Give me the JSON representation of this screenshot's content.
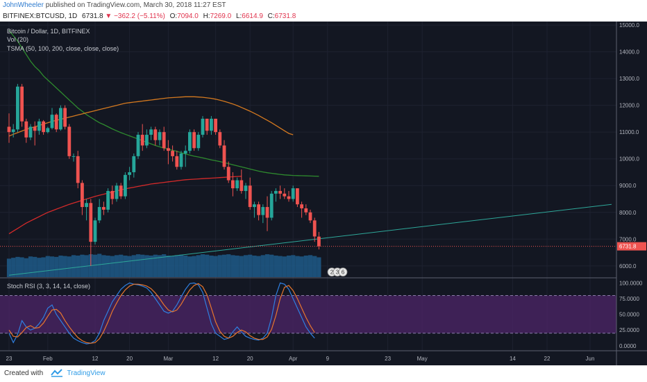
{
  "publish": {
    "author": "JohnWheeler",
    "text": " published on TradingView.com, March 30, 2018 11:27 EST"
  },
  "symbol": {
    "ticker": "BITFINEX:BTCUSD, 1D",
    "last": "6731.8",
    "change_arrow": "▼",
    "change": "−362.2 (−5.11%)",
    "o_label": "O:",
    "o_value": "7094.0",
    "h_label": "H:",
    "h_value": "7269.0",
    "l_label": "L:",
    "l_value": "6614.9",
    "c_label": "C:",
    "c_value": "6731.8"
  },
  "legend": {
    "main": "Bitcoin / Dollar, 1D, BITFINEX",
    "vol": "Vol (20)",
    "tsma": "TSMA (50, 100, 200, close, close, close)",
    "stoch": "Stoch RSI (3, 3, 14, 14, close)"
  },
  "colors": {
    "bg": "#131722",
    "up": "#26a69a",
    "down": "#ef5350",
    "ma50": "#2e8b2e",
    "ma100": "#d4791f",
    "ma200": "#d42a2a",
    "trend": "#2ea89a",
    "k": "#2f7fe0",
    "d": "#e8762d",
    "band": "#4a2464",
    "volume": "#1f5b88"
  },
  "price_axis": {
    "labels": [
      "15000.0",
      "14000.0",
      "13000.0",
      "12000.0",
      "11000.0",
      "10000.0",
      "9000.0",
      "8000.0",
      "7000.0",
      "6000.0"
    ],
    "values": [
      15000,
      14000,
      13000,
      12000,
      11000,
      10000,
      9000,
      8000,
      7000,
      6000
    ],
    "range": [
      5580,
      15080
    ],
    "last_price": 6731.8,
    "last_label": "6731.8"
  },
  "stoch_axis": {
    "labels": [
      "100.0000",
      "75.0000",
      "50.0000",
      "25.0000",
      "0.0000"
    ],
    "values": [
      100,
      75,
      50,
      25,
      0
    ],
    "band": [
      20,
      80
    ],
    "range": [
      -8,
      106
    ]
  },
  "time_axis": {
    "labels": [
      {
        "text": "23",
        "bar": 0
      },
      {
        "text": "Feb",
        "bar": 9
      },
      {
        "text": "12",
        "bar": 20
      },
      {
        "text": "20",
        "bar": 28
      },
      {
        "text": "Mar",
        "bar": 37
      },
      {
        "text": "12",
        "bar": 48
      },
      {
        "text": "20",
        "bar": 56
      },
      {
        "text": "Apr",
        "bar": 66
      },
      {
        "text": "9",
        "bar": 74
      },
      {
        "text": "23",
        "bar": 88
      },
      {
        "text": "May",
        "bar": 96
      },
      {
        "text": "14",
        "bar": 117
      },
      {
        "text": "22",
        "bar": 125
      },
      {
        "text": "Jun",
        "bar": 135
      }
    ]
  },
  "events": [
    "2",
    "3",
    "6"
  ],
  "chart_data": {
    "type": "candlestick",
    "title": "Bitcoin / Dollar, 1D, BITFINEX",
    "candles": [
      [
        11200,
        11700,
        10600,
        11000
      ],
      [
        11000,
        11300,
        10800,
        11100
      ],
      [
        11100,
        12800,
        11000,
        12700
      ],
      [
        12700,
        12800,
        11200,
        11400
      ],
      [
        11400,
        11500,
        10600,
        10800
      ],
      [
        10800,
        11300,
        10700,
        11200
      ],
      [
        11200,
        11400,
        10500,
        11050
      ],
      [
        11050,
        11500,
        10900,
        11400
      ],
      [
        11400,
        11450,
        10900,
        11000
      ],
      [
        11000,
        11200,
        10950,
        11150
      ],
      [
        11150,
        11900,
        11100,
        11650
      ],
      [
        11650,
        11700,
        11000,
        11100
      ],
      [
        11100,
        12000,
        11050,
        11900
      ],
      [
        11900,
        12000,
        11100,
        11200
      ],
      [
        11200,
        11300,
        10000,
        10100
      ],
      [
        10100,
        10200,
        9900,
        10100
      ],
      [
        10100,
        10300,
        8900,
        9100
      ],
      [
        9100,
        9200,
        7900,
        8200
      ],
      [
        8200,
        8500,
        7700,
        8350
      ],
      [
        8350,
        8500,
        6000,
        6900
      ],
      [
        6900,
        7800,
        6800,
        7700
      ],
      [
        7700,
        8500,
        7600,
        8200
      ],
      [
        8200,
        8400,
        7900,
        8100
      ],
      [
        8100,
        8900,
        8000,
        8800
      ],
      [
        8800,
        9000,
        8300,
        8500
      ],
      [
        8500,
        9100,
        8400,
        9000
      ],
      [
        9000,
        9100,
        8500,
        8600
      ],
      [
        8600,
        9500,
        8500,
        9400
      ],
      [
        9400,
        9700,
        9200,
        9500
      ],
      [
        9500,
        10200,
        9300,
        10100
      ],
      [
        10100,
        11000,
        10000,
        10900
      ],
      [
        10900,
        11300,
        10300,
        10500
      ],
      [
        10500,
        11100,
        10400,
        10900
      ],
      [
        10900,
        11200,
        10700,
        11100
      ],
      [
        11100,
        11200,
        10500,
        10700
      ],
      [
        10700,
        11100,
        10500,
        11000
      ],
      [
        11000,
        11200,
        10300,
        10400
      ],
      [
        10400,
        10700,
        9800,
        10300
      ],
      [
        10300,
        10500,
        9900,
        10100
      ],
      [
        10100,
        10300,
        9600,
        9700
      ],
      [
        9700,
        10300,
        9600,
        10200
      ],
      [
        10200,
        10500,
        9700,
        10300
      ],
      [
        10300,
        11100,
        10200,
        11000
      ],
      [
        11000,
        11100,
        10300,
        10400
      ],
      [
        10400,
        11000,
        10300,
        10900
      ],
      [
        10900,
        11600,
        10800,
        11500
      ],
      [
        11500,
        11500,
        10900,
        11050
      ],
      [
        11050,
        11600,
        10900,
        11500
      ],
      [
        11500,
        11500,
        10900,
        11000
      ],
      [
        11000,
        11100,
        10400,
        10500
      ],
      [
        10500,
        10700,
        9600,
        9700
      ],
      [
        9700,
        9900,
        9100,
        9200
      ],
      [
        9200,
        9500,
        8600,
        8900
      ],
      [
        8900,
        9300,
        8800,
        9200
      ],
      [
        9200,
        9600,
        8700,
        8800
      ],
      [
        8800,
        9100,
        8500,
        9000
      ],
      [
        9000,
        9300,
        8100,
        8200
      ],
      [
        8200,
        8400,
        7800,
        8300
      ],
      [
        8300,
        8400,
        7700,
        7900
      ],
      [
        7900,
        8300,
        7600,
        8200
      ],
      [
        8200,
        8600,
        7300,
        7800
      ],
      [
        7800,
        8800,
        7700,
        8700
      ],
      [
        8700,
        8900,
        8400,
        8800
      ],
      [
        8800,
        9000,
        8500,
        8700
      ],
      [
        8700,
        8900,
        8500,
        8600
      ],
      [
        8600,
        8800,
        8400,
        8500
      ],
      [
        8500,
        9000,
        8400,
        8900
      ],
      [
        8900,
        8900,
        8200,
        8300
      ],
      [
        8300,
        8400,
        7800,
        8150
      ],
      [
        8150,
        8300,
        7900,
        8000
      ],
      [
        8000,
        8100,
        7600,
        7700
      ],
      [
        7700,
        7800,
        6900,
        7100
      ],
      [
        7094,
        7269,
        6614.9,
        6731.8
      ]
    ],
    "volume": [
      42,
      44,
      46,
      45,
      43,
      47,
      46,
      44,
      45,
      48,
      47,
      46,
      49,
      48,
      47,
      50,
      49,
      51,
      50,
      52,
      51,
      53,
      50,
      49,
      48,
      50,
      51,
      49,
      48,
      50,
      52,
      51,
      50,
      49,
      51,
      50,
      52,
      49,
      48,
      50,
      51,
      49,
      47,
      48,
      50,
      52,
      51,
      49,
      48,
      50,
      51,
      52,
      50,
      49,
      48,
      50,
      51,
      49,
      48,
      50,
      52,
      51,
      49,
      48,
      47,
      49,
      50,
      48,
      47,
      49,
      50,
      48,
      45
    ],
    "ma50": [
      14800,
      14600,
      14400,
      14150,
      13900,
      13650,
      13450,
      13300,
      13100,
      12950,
      12800,
      12650,
      12500,
      12350,
      12200,
      12050,
      11900,
      11780,
      11650,
      11550,
      11450,
      11350,
      11280,
      11200,
      11120,
      11050,
      10980,
      10920,
      10860,
      10800,
      10740,
      10680,
      10620,
      10560,
      10500,
      10450,
      10400,
      10360,
      10320,
      10280,
      10230,
      10180,
      10140,
      10100,
      10070,
      10040,
      10000,
      9960,
      9930,
      9900,
      9860,
      9820,
      9780,
      9740,
      9700,
      9660,
      9620,
      9580,
      9540,
      9510,
      9480,
      9460,
      9440,
      9420,
      9400,
      9390,
      9380,
      9375,
      9370,
      9365,
      9360,
      9355,
      9350
    ],
    "ma100": [
      10850,
      10920,
      10980,
      11040,
      11100,
      11150,
      11200,
      11250,
      11300,
      11350,
      11400,
      11440,
      11480,
      11520,
      11560,
      11600,
      11640,
      11680,
      11720,
      11760,
      11800,
      11840,
      11880,
      11920,
      11960,
      12000,
      12040,
      12080,
      12100,
      12120,
      12140,
      12160,
      12180,
      12200,
      12220,
      12240,
      12260,
      12280,
      12290,
      12300,
      12310,
      12320,
      12320,
      12320,
      12310,
      12300,
      12280,
      12260,
      12230,
      12190,
      12150,
      12100,
      12050,
      11990,
      11920,
      11850,
      11780,
      11700,
      11620,
      11530,
      11440,
      11350,
      11250,
      11150,
      11050,
      10950,
      10900
    ],
    "ma200": [
      7200,
      7300,
      7400,
      7500,
      7600,
      7680,
      7760,
      7840,
      7920,
      8000,
      8060,
      8120,
      8180,
      8240,
      8300,
      8350,
      8400,
      8450,
      8500,
      8550,
      8600,
      8640,
      8680,
      8720,
      8760,
      8800,
      8840,
      8880,
      8910,
      8940,
      8970,
      9000,
      9030,
      9060,
      9080,
      9100,
      9120,
      9140,
      9160,
      9180,
      9200,
      9220,
      9230,
      9240,
      9250,
      9260,
      9270,
      9280,
      9290,
      9300,
      9310,
      9320,
      9330,
      9340,
      9350
    ],
    "trend": {
      "start_bar": 0,
      "start_price": 5650,
      "end_bar": 140,
      "end_price": 8300
    },
    "stoch_k": [
      20,
      5,
      18,
      40,
      30,
      25,
      28,
      35,
      45,
      60,
      65,
      50,
      40,
      30,
      20,
      12,
      8,
      5,
      3,
      4,
      8,
      20,
      40,
      55,
      70,
      80,
      90,
      96,
      100,
      98,
      97,
      95,
      92,
      85,
      75,
      65,
      55,
      52,
      55,
      65,
      78,
      90,
      99,
      100,
      97,
      85,
      60,
      35,
      20,
      15,
      10,
      12,
      22,
      30,
      22,
      15,
      12,
      10,
      9,
      12,
      20,
      45,
      80,
      100,
      98,
      90,
      75,
      60,
      45,
      30,
      20,
      12
    ],
    "stoch_d": [
      25,
      15,
      14,
      21,
      29,
      32,
      28,
      29,
      36,
      47,
      57,
      58,
      52,
      40,
      30,
      21,
      13,
      8,
      5,
      4,
      5,
      11,
      23,
      38,
      55,
      68,
      80,
      89,
      95,
      98,
      98,
      97,
      95,
      91,
      84,
      75,
      65,
      57,
      54,
      57,
      66,
      78,
      89,
      96,
      99,
      94,
      81,
      60,
      38,
      23,
      15,
      12,
      15,
      21,
      25,
      22,
      16,
      12,
      10,
      10,
      14,
      26,
      48,
      75,
      93,
      96,
      88,
      75,
      60,
      45,
      32,
      21
    ]
  }
}
